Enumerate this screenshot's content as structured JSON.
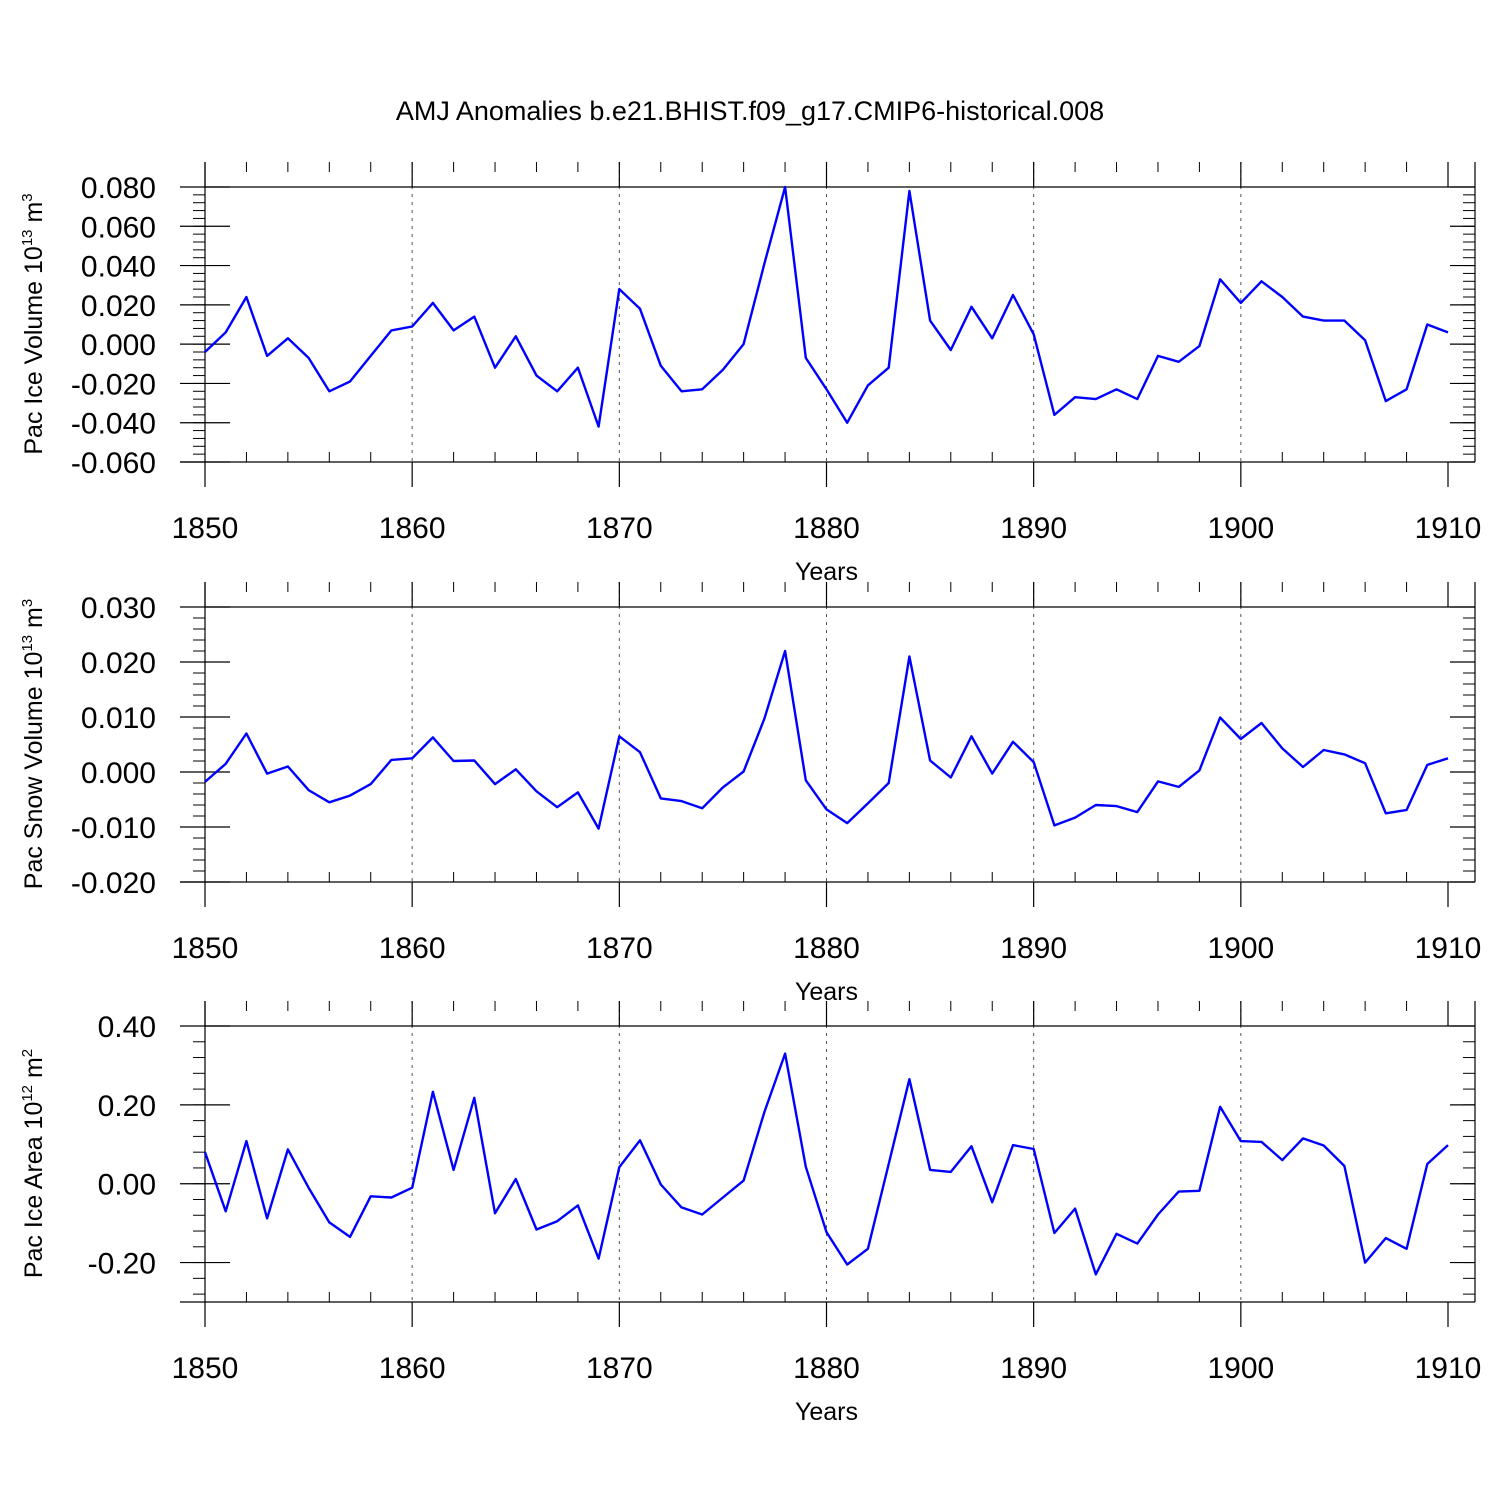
{
  "title": "AMJ Anomalies b.e21.BHIST.f09_g17.CMIP6-historical.008",
  "line_color": "#0000ff",
  "chart_data": [
    {
      "type": "line",
      "ylabel": "Pac Ice Volume 10^13 m^3",
      "ylabel_parts": {
        "main": "Pac Ice Volume 10",
        "exp1": "13",
        "mid": " m",
        "exp2": "3"
      },
      "xlabel": "Years",
      "xlim": [
        1850,
        1910
      ],
      "ylim": [
        -0.06,
        0.08
      ],
      "x_ticks": [
        "1850",
        "1860",
        "1870",
        "1880",
        "1890",
        "1900",
        "1910"
      ],
      "y_ticks": [
        "-0.060",
        "-0.040",
        "-0.020",
        "0.000",
        "0.020",
        "0.040",
        "0.060",
        "0.080"
      ],
      "x": [
        1850,
        1851,
        1852,
        1853,
        1854,
        1855,
        1856,
        1857,
        1858,
        1859,
        1860,
        1861,
        1862,
        1863,
        1864,
        1865,
        1866,
        1867,
        1868,
        1869,
        1870,
        1871,
        1872,
        1873,
        1874,
        1875,
        1876,
        1877,
        1878,
        1879,
        1880,
        1881,
        1882,
        1883,
        1884,
        1885,
        1886,
        1887,
        1888,
        1889,
        1890,
        1891,
        1892,
        1893,
        1894,
        1895,
        1896,
        1897,
        1898,
        1899,
        1900,
        1901,
        1902,
        1903,
        1904,
        1905,
        1906,
        1907,
        1908,
        1909,
        1910
      ],
      "values": [
        -0.004,
        0.006,
        0.024,
        -0.006,
        0.003,
        -0.007,
        -0.024,
        -0.019,
        -0.006,
        0.007,
        0.009,
        0.021,
        0.007,
        0.014,
        -0.012,
        0.004,
        -0.016,
        -0.024,
        -0.012,
        -0.042,
        0.028,
        0.018,
        -0.011,
        -0.024,
        -0.023,
        -0.013,
        0.0,
        0.041,
        0.08,
        -0.007,
        -0.023,
        -0.04,
        -0.021,
        -0.012,
        0.078,
        0.012,
        -0.003,
        0.019,
        0.003,
        0.025,
        0.005,
        -0.036,
        -0.027,
        -0.028,
        -0.023,
        -0.028,
        -0.006,
        -0.009,
        -0.001,
        0.033,
        0.021,
        0.032,
        0.024,
        0.014,
        0.012,
        0.012,
        0.002,
        -0.029,
        -0.023,
        0.01,
        0.006
      ]
    },
    {
      "type": "line",
      "ylabel": "Pac Snow Volume 10^13 m^3",
      "ylabel_parts": {
        "main": "Pac Snow Volume 10",
        "exp1": "13",
        "mid": " m",
        "exp2": "3"
      },
      "xlabel": "Years",
      "xlim": [
        1850,
        1910
      ],
      "ylim": [
        -0.02,
        0.03
      ],
      "x_ticks": [
        "1850",
        "1860",
        "1870",
        "1880",
        "1890",
        "1900",
        "1910"
      ],
      "y_ticks": [
        "-0.020",
        "-0.010",
        "0.000",
        "0.010",
        "0.020",
        "0.030"
      ],
      "x": [
        1850,
        1851,
        1852,
        1853,
        1854,
        1855,
        1856,
        1857,
        1858,
        1859,
        1860,
        1861,
        1862,
        1863,
        1864,
        1865,
        1866,
        1867,
        1868,
        1869,
        1870,
        1871,
        1872,
        1873,
        1874,
        1875,
        1876,
        1877,
        1878,
        1879,
        1880,
        1881,
        1882,
        1883,
        1884,
        1885,
        1886,
        1887,
        1888,
        1889,
        1890,
        1891,
        1892,
        1893,
        1894,
        1895,
        1896,
        1897,
        1898,
        1899,
        1900,
        1901,
        1902,
        1903,
        1904,
        1905,
        1906,
        1907,
        1908,
        1909,
        1910
      ],
      "values": [
        -0.0018,
        0.0015,
        0.007,
        -0.0003,
        0.001,
        -0.0033,
        -0.0055,
        -0.0043,
        -0.0022,
        0.0022,
        0.0025,
        0.0063,
        0.002,
        0.0021,
        -0.0022,
        0.0005,
        -0.0035,
        -0.0064,
        -0.0037,
        -0.0103,
        0.0065,
        0.0036,
        -0.0048,
        -0.0053,
        -0.0066,
        -0.0028,
        0.0001,
        0.0097,
        0.022,
        -0.0015,
        -0.0068,
        -0.0093,
        -0.0057,
        -0.002,
        0.021,
        0.0021,
        -0.001,
        0.0065,
        -0.0003,
        0.0055,
        0.0018,
        -0.0097,
        -0.0083,
        -0.006,
        -0.0062,
        -0.0073,
        -0.0017,
        -0.0027,
        0.0003,
        0.0099,
        0.006,
        0.0089,
        0.0043,
        0.0009,
        0.004,
        0.0032,
        0.0016,
        -0.0075,
        -0.0069,
        0.0013,
        0.0025
      ]
    },
    {
      "type": "line",
      "ylabel": "Pac Ice Area 10^12 m^2",
      "ylabel_parts": {
        "main": "Pac Ice Area 10",
        "exp1": "12",
        "mid": " m",
        "exp2": "2"
      },
      "xlabel": "Years",
      "xlim": [
        1850,
        1910
      ],
      "ylim": [
        -0.3,
        0.4
      ],
      "x_ticks": [
        "1850",
        "1860",
        "1870",
        "1880",
        "1890",
        "1900",
        "1910"
      ],
      "y_ticks": [
        "-0.20",
        "0.00",
        "0.20",
        "0.40"
      ],
      "x": [
        1850,
        1851,
        1852,
        1853,
        1854,
        1855,
        1856,
        1857,
        1858,
        1859,
        1860,
        1861,
        1862,
        1863,
        1864,
        1865,
        1866,
        1867,
        1868,
        1869,
        1870,
        1871,
        1872,
        1873,
        1874,
        1875,
        1876,
        1877,
        1878,
        1879,
        1880,
        1881,
        1882,
        1883,
        1884,
        1885,
        1886,
        1887,
        1888,
        1889,
        1890,
        1891,
        1892,
        1893,
        1894,
        1895,
        1896,
        1897,
        1898,
        1899,
        1900,
        1901,
        1902,
        1903,
        1904,
        1905,
        1906,
        1907,
        1908,
        1909,
        1910
      ],
      "values": [
        0.08,
        -0.07,
        0.108,
        -0.088,
        0.087,
        -0.01,
        -0.098,
        -0.135,
        -0.032,
        -0.035,
        -0.01,
        0.233,
        0.035,
        0.218,
        -0.075,
        0.012,
        -0.116,
        -0.095,
        -0.055,
        -0.19,
        0.042,
        0.11,
        -0.002,
        -0.06,
        -0.078,
        -0.035,
        0.008,
        0.182,
        0.33,
        0.043,
        -0.123,
        -0.205,
        -0.165,
        0.05,
        0.265,
        0.035,
        0.03,
        0.095,
        -0.047,
        0.098,
        0.088,
        -0.125,
        -0.063,
        -0.23,
        -0.127,
        -0.152,
        -0.078,
        -0.02,
        -0.018,
        0.195,
        0.108,
        0.106,
        0.06,
        0.115,
        0.097,
        0.045,
        -0.2,
        -0.138,
        -0.165,
        0.05,
        0.098
      ]
    }
  ]
}
